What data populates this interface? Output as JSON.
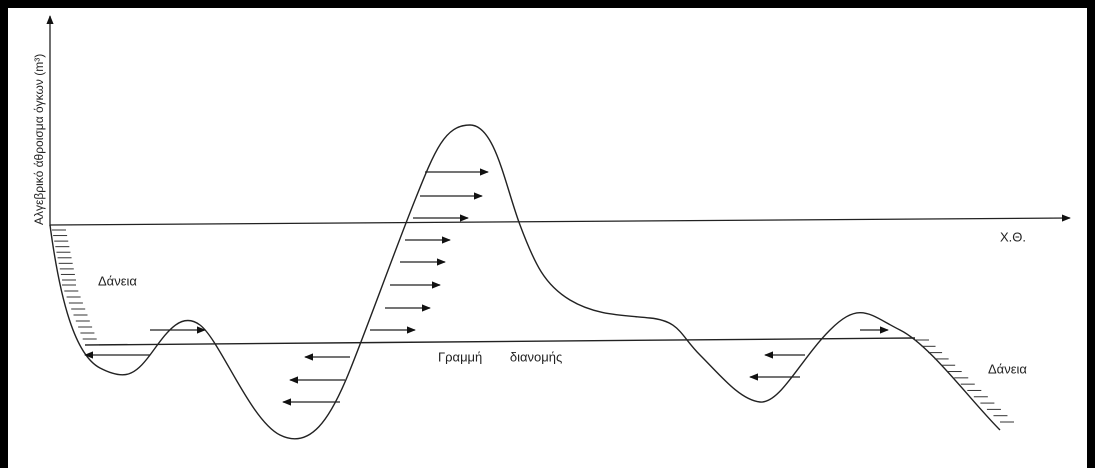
{
  "axis_labels": {
    "y": "Αλγεβρικό άθροισμα όγκων (m³)",
    "x": "Χ.Θ."
  },
  "labels": {
    "borrow_left": "Δάνεια",
    "distribution_line": "Γραμμή διανομής",
    "borrow_right": "Δάνεια"
  }
}
